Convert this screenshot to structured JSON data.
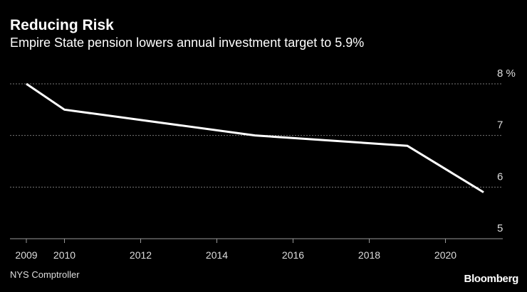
{
  "chart_data": {
    "type": "line",
    "title": "Reducing Risk",
    "subtitle": "Empire State pension lowers annual investment target to 5.9%",
    "x": [
      2009,
      2010,
      2015,
      2019,
      2021
    ],
    "series": [
      {
        "values": [
          8.0,
          7.5,
          7.0,
          6.8,
          5.9
        ],
        "color": "#ffffff"
      }
    ],
    "xlim": [
      2009,
      2021
    ],
    "ylim": [
      5,
      8
    ],
    "x_ticks": [
      "2009",
      "2010",
      "2012",
      "2014",
      "2016",
      "2018",
      "2020"
    ],
    "y_ticks": [
      "5",
      "6",
      "7",
      "8 %"
    ],
    "ylabel_unit": "%",
    "grid": "horizontal dotted",
    "source": "NYS Comptroller",
    "logo": "Bloomberg"
  }
}
